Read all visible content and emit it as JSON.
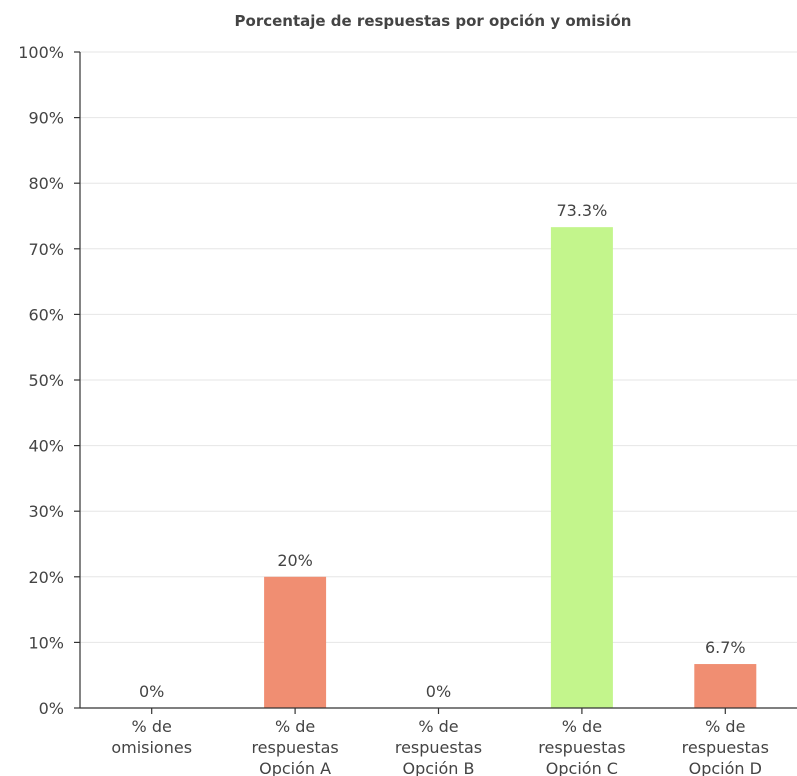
{
  "chart_data": {
    "type": "bar",
    "title": "Porcentaje de respuestas por opción y omisión",
    "categories": [
      [
        "% de",
        "omisiones"
      ],
      [
        "% de",
        "respuestas",
        "Opción A"
      ],
      [
        "% de",
        "respuestas",
        "Opción B"
      ],
      [
        "% de",
        "respuestas",
        "Opción C"
      ],
      [
        "% de",
        "respuestas",
        "Opción D"
      ]
    ],
    "values": [
      0,
      20,
      0,
      73.3,
      6.7
    ],
    "data_labels": [
      "0%",
      "20%",
      "0%",
      "73.3%",
      "6.7%"
    ],
    "bar_colors": [
      "#f08e72",
      "#f08e72",
      "#f08e72",
      "#c3f58c",
      "#f08e72"
    ],
    "ylim": [
      0,
      100
    ],
    "yticks": [
      "0%",
      "10%",
      "20%",
      "30%",
      "40%",
      "50%",
      "60%",
      "70%",
      "80%",
      "90%",
      "100%"
    ],
    "grid": true,
    "xlabel": "",
    "ylabel": ""
  }
}
